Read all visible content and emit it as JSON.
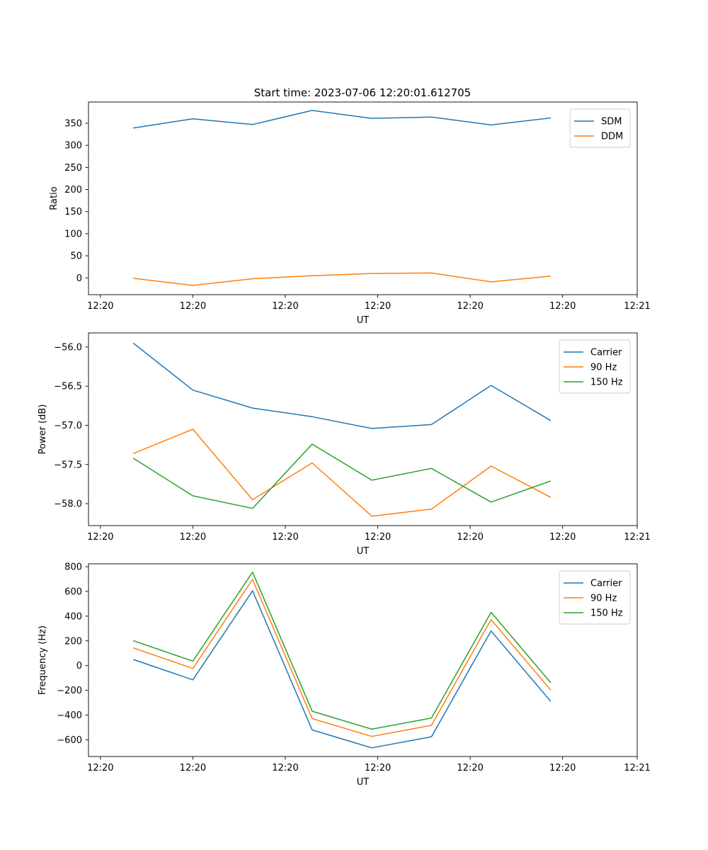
{
  "figure": {
    "title": "Start time: 2023-07-06 12:20:01.612705"
  },
  "chart_data": [
    {
      "type": "line",
      "xlabel": "UT",
      "ylabel": "Ratio",
      "xlim": [
        0,
        9.2
      ],
      "ylim": [
        -38,
        398
      ],
      "x": [
        0.75,
        1.75,
        2.75,
        3.75,
        4.75,
        5.75,
        6.75,
        7.75
      ],
      "x_ticks": [
        0.2,
        1.75,
        3.3,
        4.85,
        6.4,
        7.95,
        9.2
      ],
      "x_tick_labels": [
        "12:20",
        "12:20",
        "12:20",
        "12:20",
        "12:20",
        "12:20",
        "12:21"
      ],
      "y_ticks": [
        0,
        50,
        100,
        150,
        200,
        250,
        300,
        350
      ],
      "y_tick_labels": [
        "0",
        "50",
        "100",
        "150",
        "200",
        "250",
        "300",
        "350"
      ],
      "legend_position": "upper right",
      "series": [
        {
          "name": "SDM",
          "color": "#1f77b4",
          "values": [
            339,
            360,
            347,
            379,
            361,
            364,
            346,
            362
          ]
        },
        {
          "name": "DDM",
          "color": "#ff7f0e",
          "values": [
            -1,
            -17,
            -2,
            5,
            10,
            11,
            -9,
            4
          ]
        }
      ]
    },
    {
      "type": "line",
      "xlabel": "UT",
      "ylabel": "Power (dB)",
      "xlim": [
        0,
        9.2
      ],
      "ylim": [
        -58.28,
        -55.82
      ],
      "x": [
        0.75,
        1.75,
        2.75,
        3.75,
        4.75,
        5.75,
        6.75,
        7.75
      ],
      "x_ticks": [
        0.2,
        1.75,
        3.3,
        4.85,
        6.4,
        7.95,
        9.2
      ],
      "x_tick_labels": [
        "12:20",
        "12:20",
        "12:20",
        "12:20",
        "12:20",
        "12:20",
        "12:21"
      ],
      "y_ticks": [
        -58.0,
        -57.5,
        -57.0,
        -56.5,
        -56.0
      ],
      "y_tick_labels": [
        "−58.0",
        "−57.5",
        "−57.0",
        "−56.5",
        "−56.0"
      ],
      "legend_position": "upper right",
      "series": [
        {
          "name": "Carrier",
          "color": "#1f77b4",
          "values": [
            -55.95,
            -56.55,
            -56.78,
            -56.89,
            -57.04,
            -56.99,
            -56.49,
            -56.94
          ]
        },
        {
          "name": "90 Hz",
          "color": "#ff7f0e",
          "values": [
            -57.36,
            -57.05,
            -57.95,
            -57.48,
            -58.16,
            -58.07,
            -57.52,
            -57.92
          ]
        },
        {
          "name": "150 Hz",
          "color": "#2ca02c",
          "values": [
            -57.42,
            -57.9,
            -58.06,
            -57.24,
            -57.7,
            -57.55,
            -57.98,
            -57.71
          ]
        }
      ]
    },
    {
      "type": "line",
      "xlabel": "UT",
      "ylabel": "Frequency (Hz)",
      "xlim": [
        0,
        9.2
      ],
      "ylim": [
        -735,
        823
      ],
      "x": [
        0.75,
        1.75,
        2.75,
        3.75,
        4.75,
        5.75,
        6.75,
        7.75
      ],
      "x_ticks": [
        0.2,
        1.75,
        3.3,
        4.85,
        6.4,
        7.95,
        9.2
      ],
      "x_tick_labels": [
        "12:20",
        "12:20",
        "12:20",
        "12:20",
        "12:20",
        "12:20",
        "12:21"
      ],
      "y_ticks": [
        -600,
        -400,
        -200,
        0,
        200,
        400,
        600,
        800
      ],
      "y_tick_labels": [
        "−600",
        "−400",
        "−200",
        "0",
        "200",
        "400",
        "600",
        "800"
      ],
      "legend_position": "upper right",
      "series": [
        {
          "name": "Carrier",
          "color": "#1f77b4",
          "values": [
            50,
            -115,
            605,
            -520,
            -665,
            -575,
            280,
            -290
          ]
        },
        {
          "name": "90 Hz",
          "color": "#ff7f0e",
          "values": [
            143,
            -23,
            697,
            -428,
            -573,
            -483,
            372,
            -198
          ]
        },
        {
          "name": "150 Hz",
          "color": "#2ca02c",
          "values": [
            202,
            36,
            756,
            -369,
            -514,
            -424,
            431,
            -139
          ]
        }
      ]
    }
  ]
}
